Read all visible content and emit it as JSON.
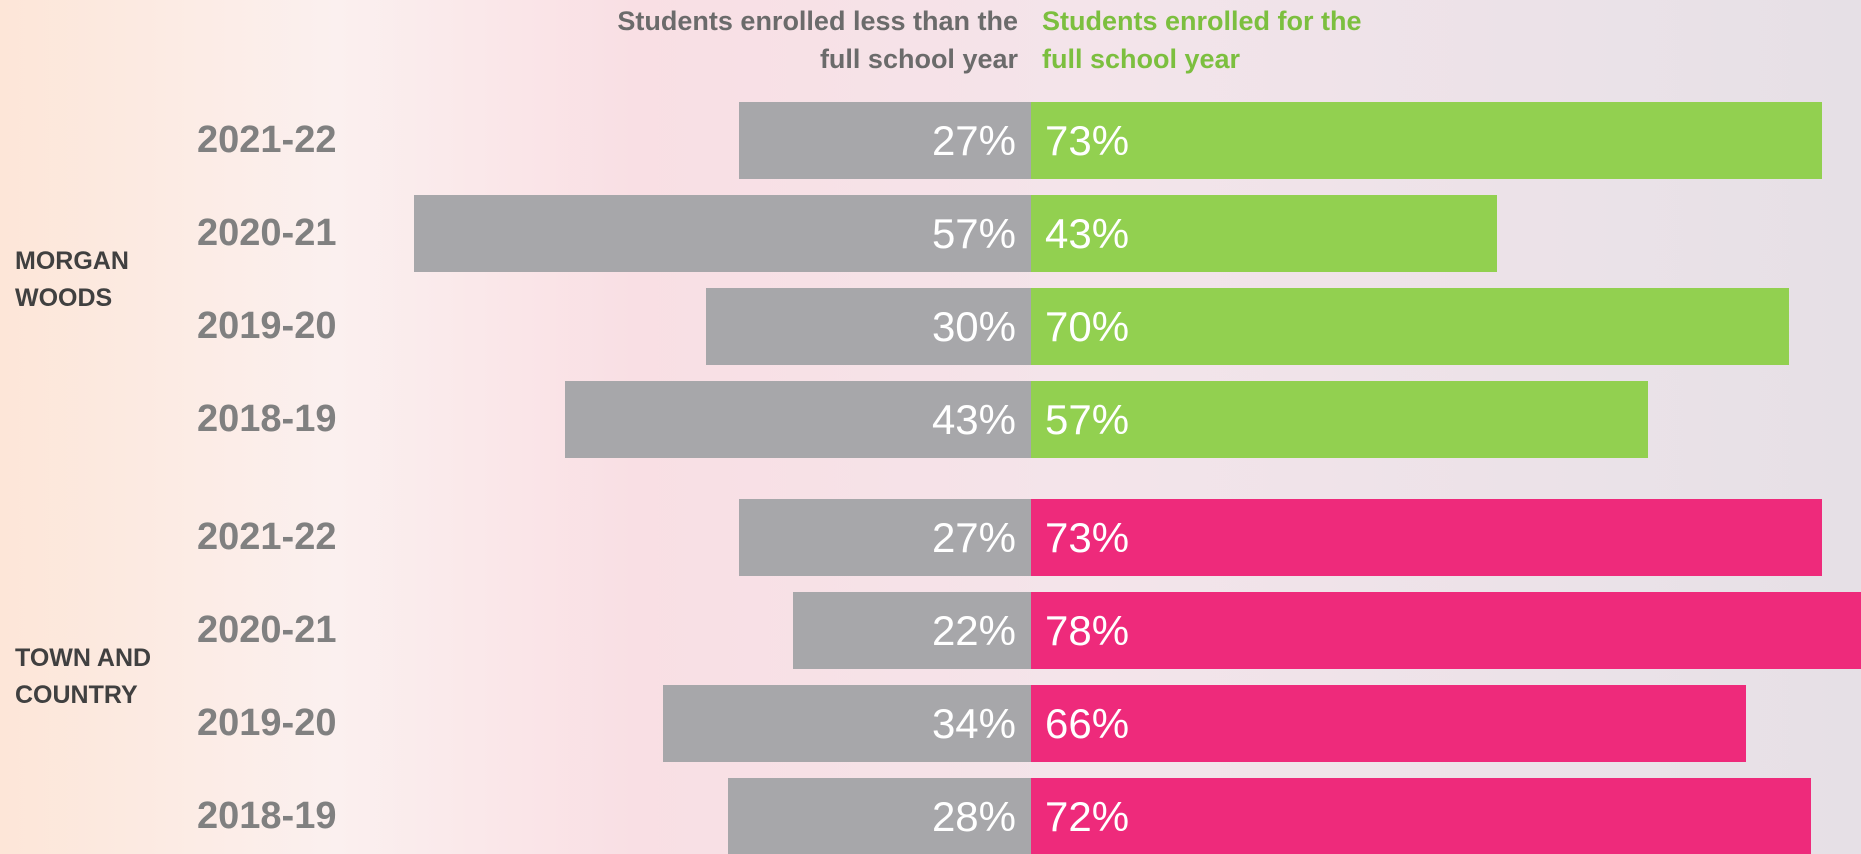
{
  "chart_data": [
    {
      "type": "bar",
      "group": "MORGAN WOODS",
      "categories": [
        "2021-22",
        "2020-21",
        "2019-20",
        "2018-19"
      ],
      "series": [
        {
          "name": "Students enrolled less than the full school year",
          "color": "#a7a7aa",
          "values": [
            27,
            57,
            30,
            43
          ],
          "value_labels": [
            "27%",
            "57%",
            "30%",
            "43%"
          ]
        },
        {
          "name": "Students enrolled for the full school year",
          "color": "#92d050",
          "values": [
            73,
            43,
            70,
            57
          ],
          "value_labels": [
            "73%",
            "43%",
            "70%",
            "57%"
          ]
        }
      ]
    },
    {
      "type": "bar",
      "group": "TOWN AND COUNTRY",
      "categories": [
        "2021-22",
        "2020-21",
        "2019-20",
        "2018-19"
      ],
      "series": [
        {
          "color": "#a7a7aa",
          "values": [
            27,
            22,
            34,
            28
          ],
          "value_labels": [
            "27%",
            "22%",
            "34%",
            "28%"
          ]
        },
        {
          "color": "#ee2a7b",
          "values": [
            73,
            78,
            66,
            72
          ],
          "value_labels": [
            "73%",
            "78%",
            "66%",
            "72%"
          ]
        }
      ]
    }
  ]
}
